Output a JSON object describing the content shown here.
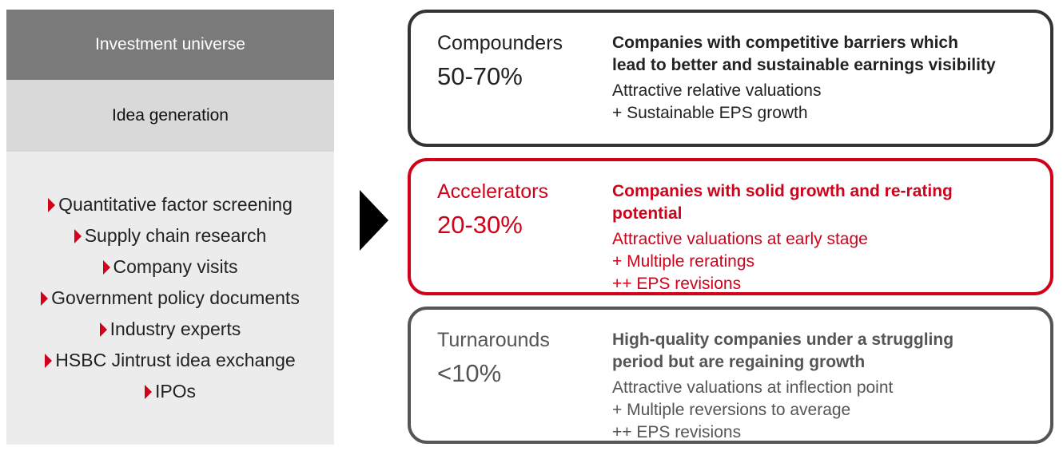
{
  "left": {
    "header": "Investment universe",
    "subheader": "Idea generation",
    "items": [
      "Quantitative factor screening",
      "Supply chain research",
      "Company visits",
      "Government policy documents",
      "Industry experts",
      "HSBC Jintrust idea exchange",
      "IPOs"
    ]
  },
  "boxes": [
    {
      "title": "Compounders",
      "share": "50-70%",
      "headline": [
        "Companies with competitive barriers which",
        "lead to better and sustainable earnings visibility"
      ],
      "details": [
        "Attractive relative valuations",
        "+ Sustainable EPS growth"
      ]
    },
    {
      "title": "Accelerators",
      "share": "20-30%",
      "headline": [
        "Companies with solid growth and re-rating",
        "potential"
      ],
      "details": [
        "Attractive valuations at early stage",
        "+ Multiple reratings",
        "++ EPS revisions"
      ]
    },
    {
      "title": "Turnarounds",
      "share": "<10%",
      "headline": [
        "High-quality companies under a struggling",
        "period but are regaining growth"
      ],
      "details": [
        "Attractive valuations at inflection point",
        "+ Multiple reversions to average",
        "++ EPS revisions"
      ]
    }
  ]
}
